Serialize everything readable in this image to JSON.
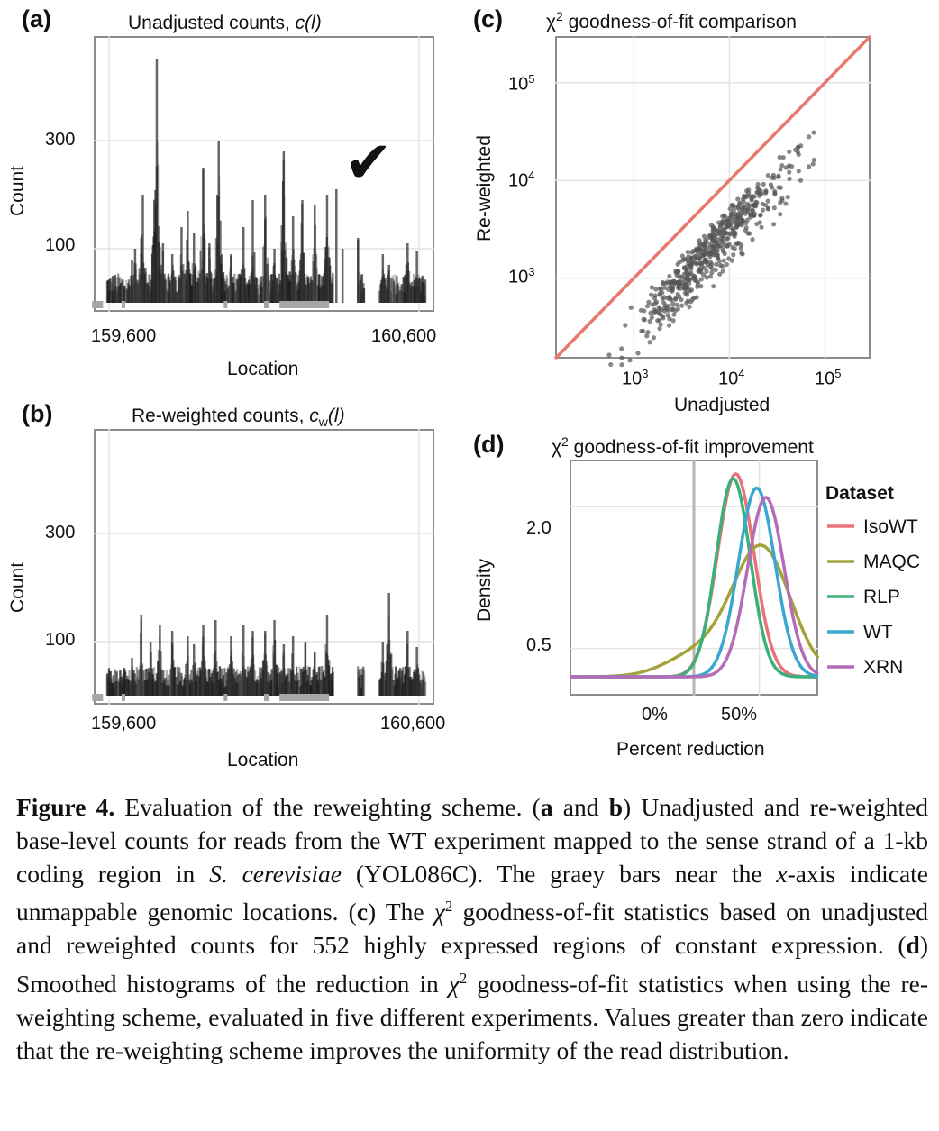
{
  "panels": {
    "a": {
      "tag": "(a)",
      "title": "Unadjusted counts, ",
      "title_math": "c(l)",
      "ylabel": "Count",
      "xlabel": "Location",
      "yticks": [
        "300",
        "100"
      ],
      "xticks": [
        "159,600",
        "160,600"
      ],
      "checkmark": "✔"
    },
    "b": {
      "tag": "(b)",
      "title": "Re-weighted counts, ",
      "title_math": "c",
      "title_sub": "w",
      "title_math2": "(l)",
      "ylabel": "Count",
      "xlabel": "Location",
      "yticks": [
        "300",
        "100"
      ],
      "xticks": [
        "159,600",
        "160,600"
      ]
    },
    "c": {
      "tag": "(c)",
      "title": "χ",
      "title_sup": "2",
      "title_rest": " goodness-of-fit comparison",
      "ylabel": "Re-weighted",
      "xlabel": "Unadjusted",
      "yticks": [
        "10",
        "10",
        "10"
      ],
      "ytick_sups": [
        "5",
        "4",
        "3"
      ],
      "xticks": [
        "10",
        "10",
        "10"
      ],
      "xtick_sups": [
        "3",
        "4",
        "5"
      ]
    },
    "d": {
      "tag": "(d)",
      "title": "χ",
      "title_sup": "2",
      "title_rest": " goodness-of-fit improvement",
      "ylabel": "Density",
      "xlabel": "Percent reduction",
      "yticks": [
        "2.0",
        "0.5"
      ],
      "xticks": [
        "0%",
        "50%"
      ],
      "legend_title": "Dataset"
    }
  },
  "chart_data": [
    {
      "panel": "a",
      "type": "bar",
      "title": "Unadjusted counts, c(l)",
      "xlabel": "Location",
      "ylabel": "Count",
      "xlim": [
        159550,
        160650
      ],
      "ylim": [
        0,
        480
      ],
      "yticks": [
        100,
        300
      ],
      "xticks": [
        159600,
        160600
      ],
      "peaks": [
        [
          159670,
          80
        ],
        [
          159680,
          100
        ],
        [
          159700,
          120
        ],
        [
          159705,
          200
        ],
        [
          159740,
          95
        ],
        [
          159750,
          450
        ],
        [
          159770,
          110
        ],
        [
          159800,
          90
        ],
        [
          159830,
          140
        ],
        [
          159850,
          170
        ],
        [
          159870,
          130
        ],
        [
          159900,
          250
        ],
        [
          159920,
          110
        ],
        [
          159950,
          300
        ],
        [
          159990,
          90
        ],
        [
          160030,
          140
        ],
        [
          160060,
          190
        ],
        [
          160100,
          200
        ],
        [
          160130,
          100
        ],
        [
          160160,
          280
        ],
        [
          160190,
          160
        ],
        [
          160220,
          190
        ],
        [
          160260,
          180
        ],
        [
          160300,
          200
        ],
        [
          160330,
          210
        ],
        [
          160350,
          100
        ],
        [
          160400,
          120
        ],
        [
          160480,
          90
        ],
        [
          160500,
          70
        ],
        [
          160560,
          110
        ],
        [
          160590,
          95
        ]
      ],
      "unmappable": [
        [
          159545,
          159580
        ],
        [
          159640,
          159650
        ],
        [
          159970,
          159980
        ],
        [
          160100,
          160115
        ],
        [
          160150,
          160310
        ]
      ]
    },
    {
      "panel": "b",
      "type": "bar",
      "title": "Re-weighted counts, cw(l)",
      "xlabel": "Location",
      "ylabel": "Count",
      "xlim": [
        159550,
        160650
      ],
      "ylim": [
        0,
        480
      ],
      "yticks": [
        100,
        300
      ],
      "xticks": [
        159600,
        160600
      ],
      "peaks": [
        [
          159670,
          70
        ],
        [
          159700,
          150
        ],
        [
          159730,
          100
        ],
        [
          159760,
          130
        ],
        [
          159800,
          120
        ],
        [
          159850,
          110
        ],
        [
          159870,
          95
        ],
        [
          159900,
          130
        ],
        [
          159940,
          140
        ],
        [
          159990,
          110
        ],
        [
          160030,
          130
        ],
        [
          160060,
          120
        ],
        [
          160100,
          120
        ],
        [
          160130,
          140
        ],
        [
          160160,
          95
        ],
        [
          160190,
          110
        ],
        [
          160230,
          100
        ],
        [
          160260,
          80
        ],
        [
          160300,
          150
        ],
        [
          160480,
          100
        ],
        [
          160500,
          190
        ],
        [
          160560,
          120
        ],
        [
          160590,
          90
        ]
      ],
      "unmappable": [
        [
          159545,
          159580
        ],
        [
          159640,
          159650
        ],
        [
          159970,
          159980
        ],
        [
          160100,
          160115
        ],
        [
          160150,
          160310
        ]
      ]
    },
    {
      "panel": "c",
      "type": "scatter",
      "title": "χ2 goodness-of-fit comparison",
      "xlabel": "Unadjusted",
      "ylabel": "Re-weighted",
      "scale": "log10",
      "xlim": [
        150,
        300000
      ],
      "ylim": [
        150,
        300000
      ],
      "xticks": [
        1000,
        10000,
        100000
      ],
      "yticks": [
        1000,
        10000,
        100000
      ],
      "reference_line": "y = x",
      "reference_color": "#e8786e",
      "point_color": "#555555",
      "n_points": 552,
      "x_range": [
        450,
        180000
      ],
      "y_range": [
        280,
        90000
      ]
    },
    {
      "panel": "d",
      "type": "line",
      "title": "χ2 goodness-of-fit improvement",
      "xlabel": "Percent reduction",
      "ylabel": "Density",
      "xlim": [
        -0.95,
        0.95
      ],
      "ylim": [
        0,
        2.5
      ],
      "xticks": [
        0,
        0.5
      ],
      "xtick_labels": [
        "0%",
        "50%"
      ],
      "yticks": [
        0.5,
        2.0
      ],
      "vline": 0,
      "legend_title": "Dataset",
      "legend_position": "right",
      "series": [
        {
          "name": "IsoWT",
          "color": "#e8737a",
          "peak_x": 0.32,
          "peak_y": 2.35,
          "sd": 0.14
        },
        {
          "name": "MAQC",
          "color": "#a3a33b",
          "peak_x": 0.52,
          "peak_y": 1.55,
          "sd": 0.22
        },
        {
          "name": "RLP",
          "color": "#3cb07a",
          "peak_x": 0.3,
          "peak_y": 2.3,
          "sd": 0.13
        },
        {
          "name": "WT",
          "color": "#3ba6cf",
          "peak_x": 0.48,
          "peak_y": 2.2,
          "sd": 0.14
        },
        {
          "name": "XRN",
          "color": "#b56cb8",
          "peak_x": 0.55,
          "peak_y": 2.1,
          "sd": 0.14
        }
      ]
    }
  ],
  "caption": {
    "fig_label": "Figure 4.",
    "t1": " Evaluation of the reweighting scheme. (",
    "b1": "a",
    "t2": " and ",
    "b2": "b",
    "t3": ") Unadjusted and re-weighted base-level counts for reads from the WT experiment mapped to the sense strand of a 1-kb coding region in ",
    "i1": "S. cerevisiae",
    "t4": " (YOL086C). The graey bars near the ",
    "i2": "x",
    "t5": "-axis indicate unmappable genomic locations. (",
    "b3": "c",
    "t6": ") The ",
    "chi": "χ",
    "sup": "2",
    "t7": " goodness-of-fit statistics based on unadjusted and reweighted counts for 552 highly expressed regions of constant expression. (",
    "b4": "d",
    "t8": ") Smoothed histograms of the reduction in ",
    "chi2": "χ",
    "sup2": "2",
    "t9": " goodness-of-fit statistics when using the re-weighting scheme, evaluated in five different experiments. Values greater than zero indicate that the re-weighting scheme improves the uniformity of the read distribution."
  }
}
